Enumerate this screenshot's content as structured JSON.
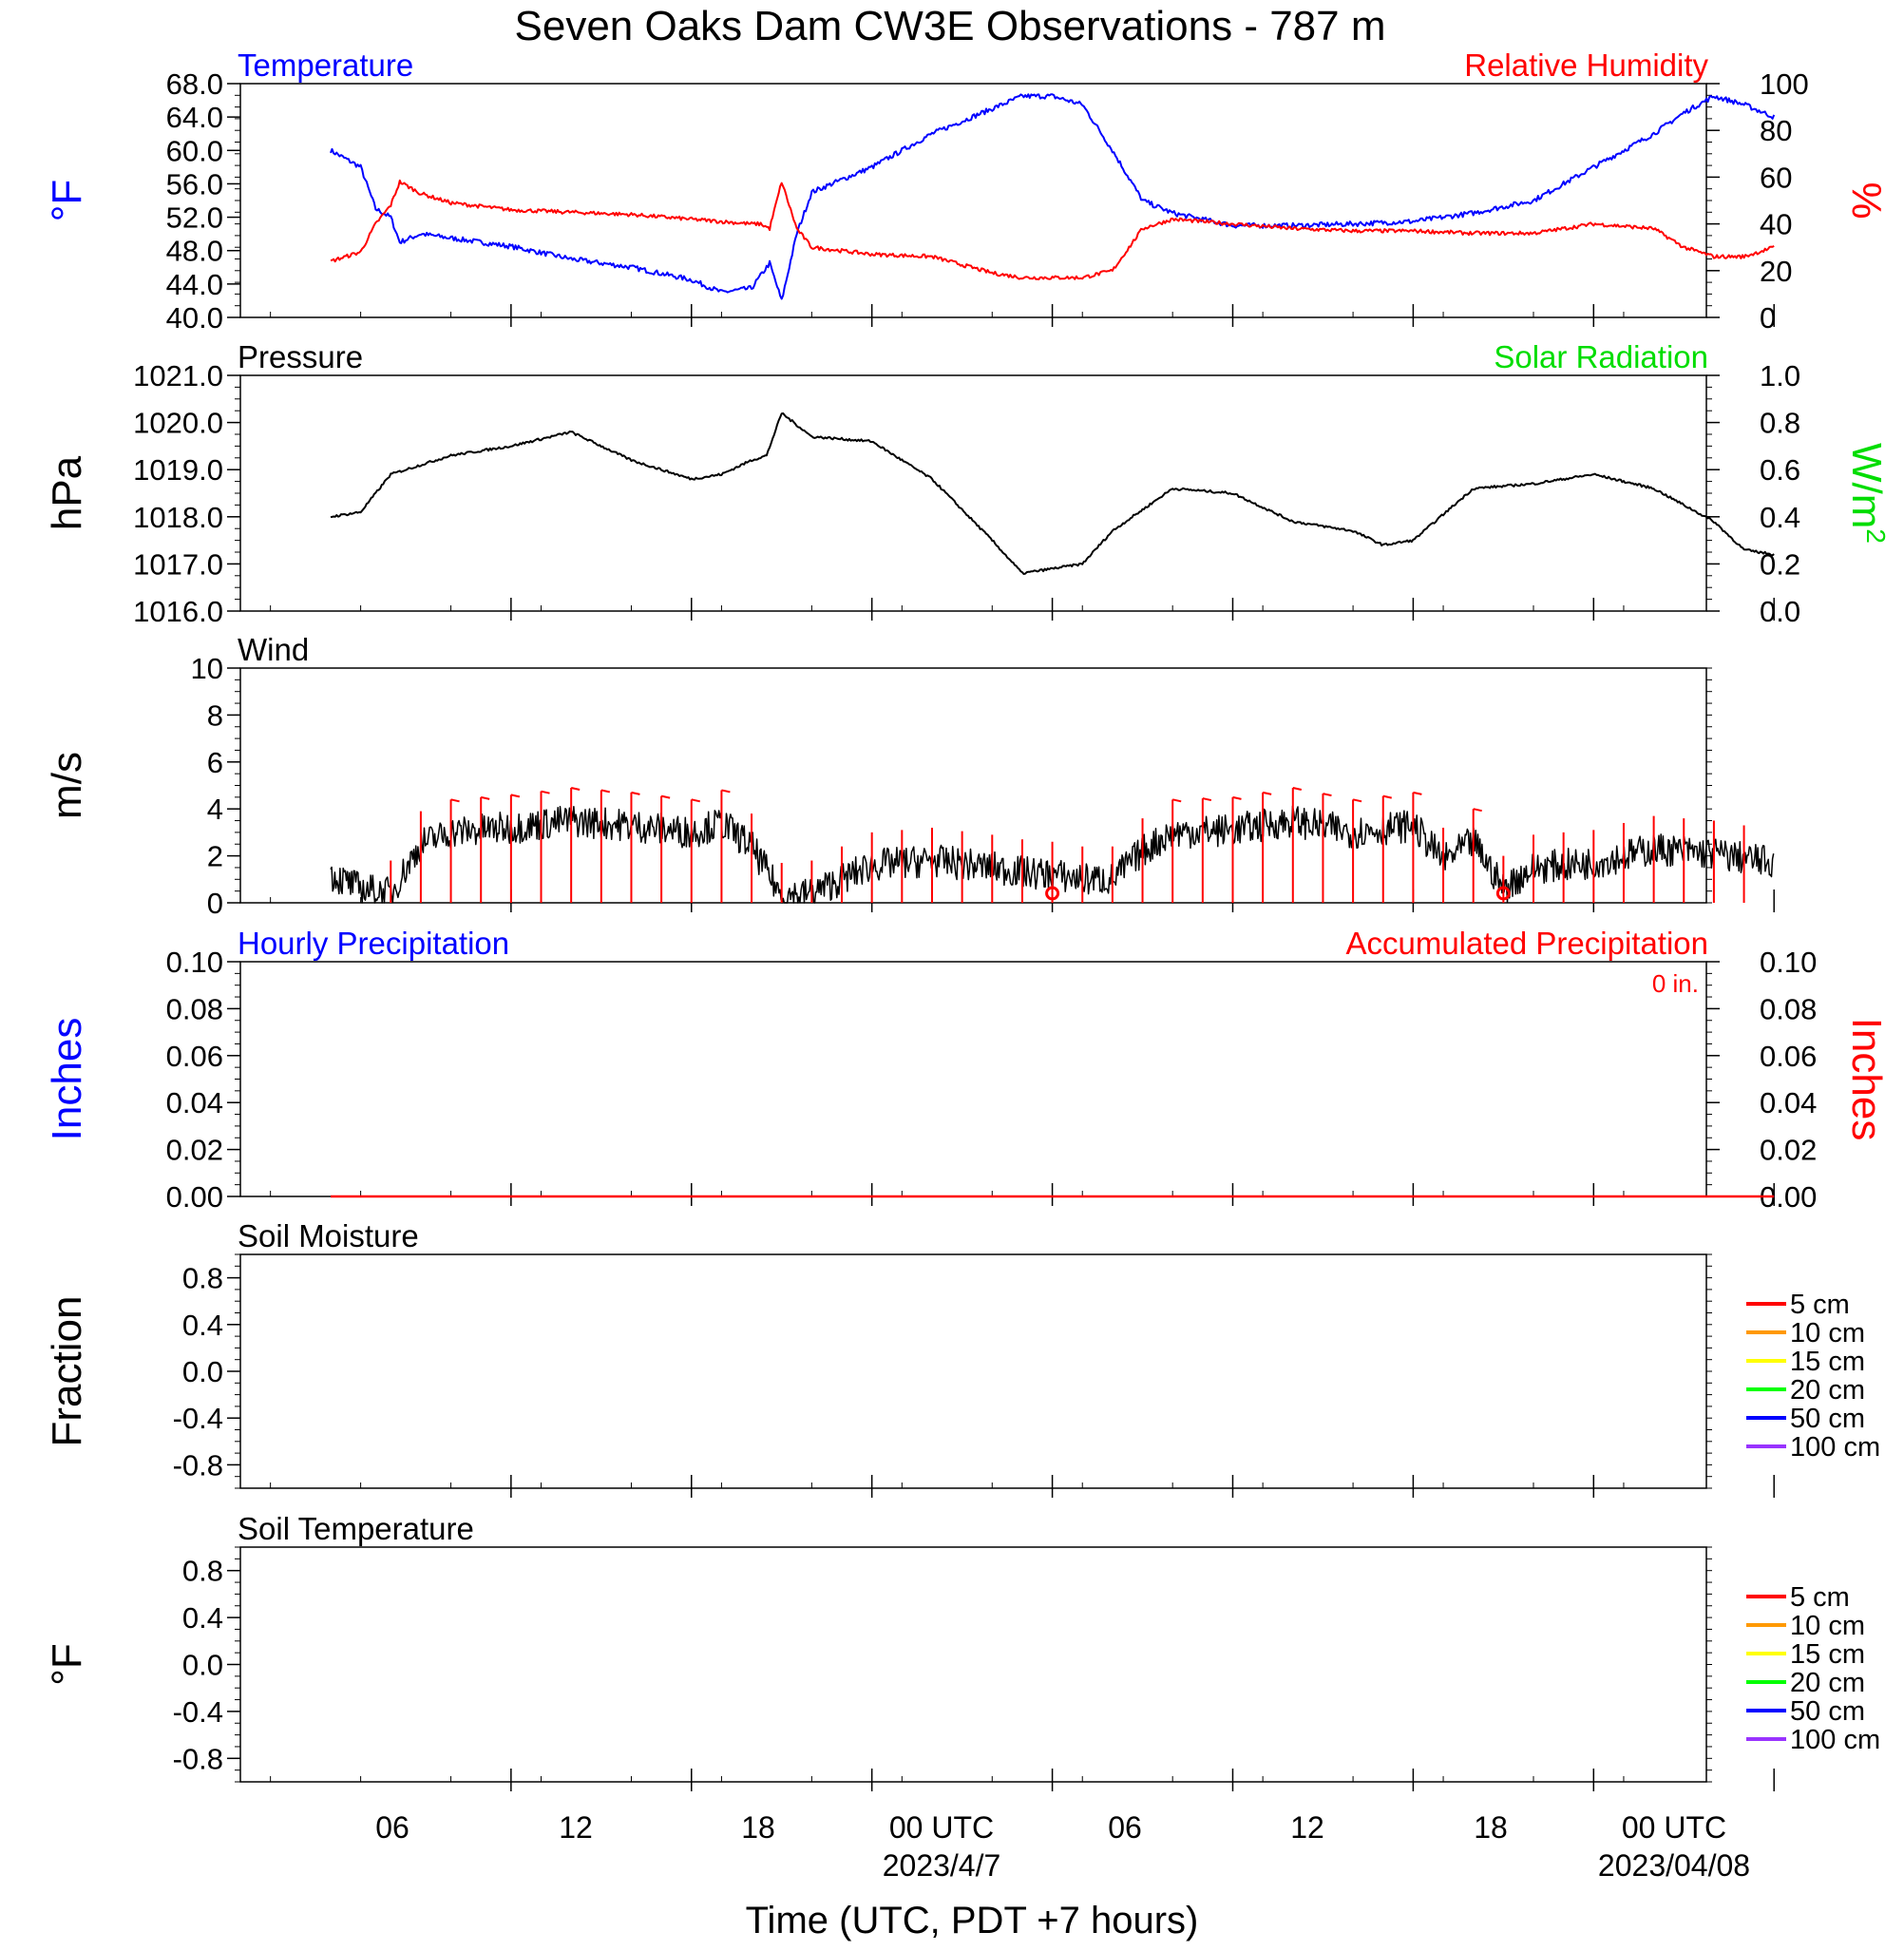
{
  "title": "Seven Oaks Dam CW3E Observations - 787 m",
  "colors": {
    "temperature": "#0000ff",
    "humidity": "#ff0000",
    "pressure": "#000000",
    "solar": "#00dd00",
    "wind": "#000000",
    "barb": "#ff0000",
    "hourly_precip": "#0000ff",
    "accum_precip": "#ff0000"
  },
  "time_axis": {
    "label": "Time (UTC, PDT +7 hours)",
    "tick_labels": [
      "06",
      "12",
      "18",
      "00 UTC",
      "06",
      "12",
      "18",
      "00 UTC"
    ],
    "date_labels": [
      "2023/4/7",
      "2023/04/08"
    ]
  },
  "chart_data": [
    {
      "type": "line",
      "title": "Temperature / Relative Humidity",
      "left_label": "Temperature",
      "right_label": "Relative Humidity",
      "ylabel_left": "°F",
      "ylabel_right": "%",
      "ylim_left": [
        40,
        68
      ],
      "ylim_right": [
        0,
        100
      ],
      "left_ticks": [
        "40.0",
        "44.0",
        "48.0",
        "52.0",
        "56.0",
        "60.0",
        "64.0",
        "68.0"
      ],
      "right_ticks": [
        "0",
        "20",
        "40",
        "60",
        "80",
        "100"
      ],
      "x_hours": [
        0,
        1,
        1.5,
        2,
        2.3,
        3,
        4,
        6,
        8,
        10,
        12,
        13,
        14,
        14.3,
        14.6,
        15,
        15.5,
        16,
        18,
        20,
        22,
        23,
        24,
        25,
        26,
        27,
        28,
        30,
        32,
        34,
        36,
        38,
        40,
        42,
        44,
        45,
        46,
        47,
        48
      ],
      "series": [
        {
          "name": "Temperature",
          "axis": "left",
          "values": [
            60,
            58,
            53,
            52,
            49,
            50,
            49.5,
            48.5,
            47,
            46,
            44.5,
            43,
            43.5,
            45,
            46.5,
            42,
            50,
            55,
            58,
            62,
            65,
            66.5,
            66.5,
            65.5,
            60,
            54,
            52.5,
            51,
            51,
            51.2,
            51.5,
            52.5,
            54,
            58,
            62,
            64.5,
            66.5,
            65.5,
            64
          ]
        },
        {
          "name": "Relative Humidity",
          "axis": "right",
          "values": [
            24,
            28,
            40,
            48,
            58,
            53,
            49,
            46,
            45,
            44,
            42,
            41,
            40,
            40,
            38,
            58,
            38,
            30,
            27,
            26,
            19,
            17,
            17,
            17,
            20,
            38,
            42,
            40,
            38,
            37,
            37,
            36,
            36,
            40,
            38,
            30,
            26,
            26,
            30
          ]
        }
      ]
    },
    {
      "type": "line",
      "title": "Pressure",
      "left_label": "Pressure",
      "right_label": "Solar Radiation",
      "ylabel_left": "hPa",
      "ylabel_right": "W/m",
      "ylabel_right_sup": "2",
      "ylim_left": [
        1016.0,
        1021.0
      ],
      "ylim_right": [
        0.0,
        1.0
      ],
      "left_ticks": [
        "1016.0",
        "1017.0",
        "1018.0",
        "1019.0",
        "1020.0",
        "1021.0"
      ],
      "right_ticks": [
        "0.0",
        "0.2",
        "0.4",
        "0.6",
        "0.8",
        "1.0"
      ],
      "x_hours": [
        0,
        1,
        2,
        4,
        6,
        8,
        10,
        12,
        13,
        14,
        14.5,
        15,
        16,
        18,
        20,
        22,
        23,
        24,
        25,
        26,
        28,
        30,
        32,
        34,
        35,
        36,
        38,
        40,
        42,
        44,
        46,
        47,
        48
      ],
      "series": [
        {
          "name": "Pressure",
          "axis": "left",
          "values": [
            1018.0,
            1018.1,
            1018.9,
            1019.3,
            1019.5,
            1019.8,
            1019.2,
            1018.8,
            1018.9,
            1019.2,
            1019.3,
            1020.2,
            1019.7,
            1019.6,
            1018.8,
            1017.5,
            1016.8,
            1016.9,
            1017.0,
            1017.7,
            1018.6,
            1018.5,
            1017.9,
            1017.7,
            1017.4,
            1017.5,
            1018.6,
            1018.7,
            1018.9,
            1018.6,
            1017.9,
            1017.3,
            1017.2
          ]
        }
      ]
    },
    {
      "type": "line",
      "title": "Wind",
      "left_label": "Wind",
      "ylabel_left": "m/s",
      "ylim_left": [
        0,
        10
      ],
      "left_ticks": [
        "0",
        "2",
        "4",
        "6",
        "8",
        "10"
      ],
      "x_hours": [
        0,
        1,
        2,
        3,
        4,
        6,
        8,
        10,
        12,
        13,
        14,
        15,
        16,
        18,
        20,
        22,
        23,
        24,
        25,
        26,
        27,
        28,
        30,
        32,
        34,
        36,
        37,
        38,
        39,
        40,
        42,
        44,
        46,
        48
      ],
      "series": [
        {
          "name": "Wind",
          "axis": "left",
          "values": [
            1.2,
            0.6,
            0.4,
            2.5,
            3.0,
            3.2,
            3.5,
            3.3,
            3.0,
            3.4,
            2.4,
            0.3,
            0.4,
            1.6,
            1.8,
            1.5,
            1.3,
            1.2,
            1.0,
            1.0,
            2.2,
            3.0,
            3.1,
            3.5,
            3.0,
            3.3,
            1.8,
            2.6,
            0.6,
            1.5,
            1.7,
            2.3,
            2.1,
            1.7
          ]
        }
      ],
      "calm_markers_hours": [
        24.0,
        39.0
      ]
    },
    {
      "type": "line",
      "title": "Precipitation",
      "left_label": "Hourly Precipitation",
      "right_label": "Accumulated Precipitation",
      "accum_total": "0 in.",
      "ylabel_left": "Inches",
      "ylabel_right": "Inches",
      "ylim_left": [
        0,
        0.1
      ],
      "ylim_right": [
        0,
        0.1
      ],
      "left_ticks": [
        "0.00",
        "0.02",
        "0.04",
        "0.06",
        "0.08",
        "0.10"
      ],
      "right_ticks": [
        "0.00",
        "0.02",
        "0.04",
        "0.06",
        "0.08",
        "0.10"
      ],
      "x_hours": [
        0,
        48
      ],
      "series": [
        {
          "name": "Hourly Precipitation",
          "axis": "left",
          "values": [
            0,
            0
          ]
        },
        {
          "name": "Accumulated Precipitation",
          "axis": "right",
          "values": [
            0,
            0
          ]
        }
      ]
    },
    {
      "type": "line",
      "title": "Soil Moisture",
      "left_label": "Soil Moisture",
      "ylabel_left": "Fraction",
      "ylim_left": [
        -1,
        1
      ],
      "left_ticks": [
        "-0.8",
        "-0.4",
        "0.0",
        "0.4",
        "0.8"
      ],
      "legend": [
        "5 cm",
        "10 cm",
        "15 cm",
        "20 cm",
        "50 cm",
        "100 cm"
      ],
      "legend_colors": [
        "#ff0000",
        "#ff9900",
        "#ffff00",
        "#00ff00",
        "#0000ff",
        "#9933ff"
      ],
      "series": []
    },
    {
      "type": "line",
      "title": "Soil Temperature",
      "left_label": "Soil Temperature",
      "ylabel_left": "°F",
      "ylim_left": [
        -1,
        1
      ],
      "left_ticks": [
        "-0.8",
        "-0.4",
        "0.0",
        "0.4",
        "0.8"
      ],
      "legend": [
        "5 cm",
        "10 cm",
        "15 cm",
        "20 cm",
        "50 cm",
        "100 cm"
      ],
      "legend_colors": [
        "#ff0000",
        "#ff9900",
        "#ffff00",
        "#00ff00",
        "#0000ff",
        "#9933ff"
      ],
      "series": []
    }
  ]
}
